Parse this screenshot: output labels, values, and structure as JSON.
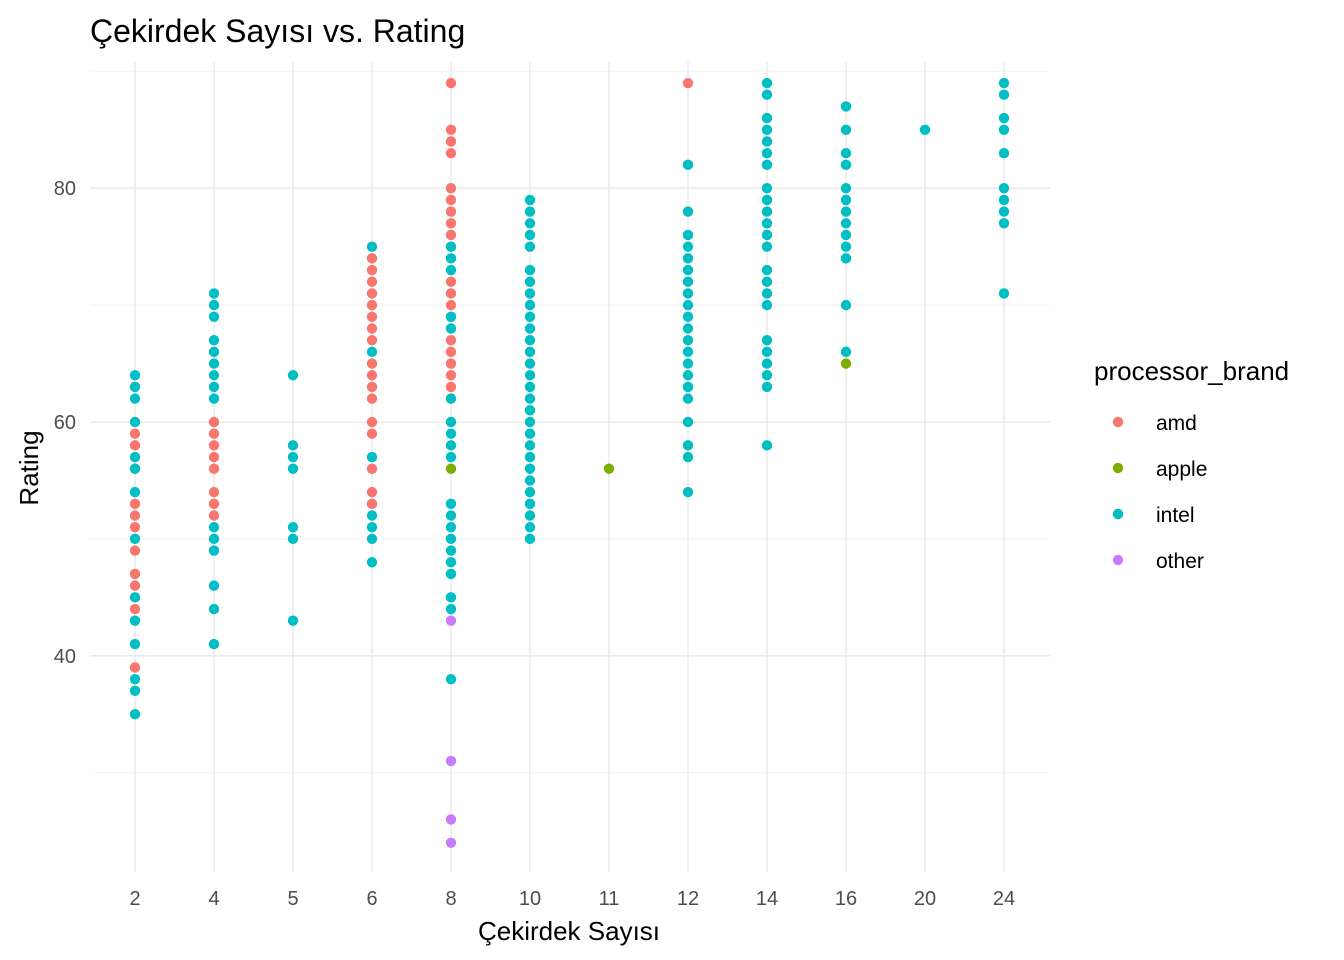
{
  "chart_data": {
    "type": "scatter",
    "title": "Çekirdek Sayısı vs. Rating",
    "xlabel": "Çekirdek Sayısı",
    "ylabel": "Rating",
    "x_axis": "categorical",
    "categories": [
      "2",
      "4",
      "5",
      "6",
      "8",
      "10",
      "11",
      "12",
      "14",
      "16",
      "20",
      "24"
    ],
    "ylim": [
      21.5,
      90.8
    ],
    "y_ticks": [
      40,
      60,
      80
    ],
    "y_minor_ticks": [
      30,
      50,
      70,
      90
    ],
    "grid": true,
    "legend": {
      "title": "processor_brand",
      "position": "right"
    },
    "series": [
      {
        "name": "amd",
        "color": "#F8766D",
        "points": [
          [
            "2",
            59
          ],
          [
            "2",
            58
          ],
          [
            "2",
            56
          ],
          [
            "2",
            53
          ],
          [
            "2",
            52
          ],
          [
            "2",
            51
          ],
          [
            "2",
            49
          ],
          [
            "2",
            47
          ],
          [
            "2",
            46
          ],
          [
            "2",
            44
          ],
          [
            "2",
            39
          ],
          [
            "4",
            60
          ],
          [
            "4",
            59
          ],
          [
            "4",
            58
          ],
          [
            "4",
            57
          ],
          [
            "4",
            56
          ],
          [
            "4",
            54
          ],
          [
            "4",
            53
          ],
          [
            "4",
            52
          ],
          [
            "6",
            74
          ],
          [
            "6",
            73
          ],
          [
            "6",
            72
          ],
          [
            "6",
            71
          ],
          [
            "6",
            70
          ],
          [
            "6",
            69
          ],
          [
            "6",
            68
          ],
          [
            "6",
            67
          ],
          [
            "6",
            65
          ],
          [
            "6",
            64
          ],
          [
            "6",
            63
          ],
          [
            "6",
            62
          ],
          [
            "6",
            60
          ],
          [
            "6",
            59
          ],
          [
            "6",
            56
          ],
          [
            "6",
            54
          ],
          [
            "6",
            53
          ],
          [
            "8",
            89
          ],
          [
            "8",
            85
          ],
          [
            "8",
            84
          ],
          [
            "8",
            83
          ],
          [
            "8",
            80
          ],
          [
            "8",
            79
          ],
          [
            "8",
            78
          ],
          [
            "8",
            77
          ],
          [
            "8",
            76
          ],
          [
            "8",
            75
          ],
          [
            "8",
            72
          ],
          [
            "8",
            71
          ],
          [
            "8",
            70
          ],
          [
            "8",
            69
          ],
          [
            "8",
            67
          ],
          [
            "8",
            66
          ],
          [
            "8",
            65
          ],
          [
            "8",
            64
          ],
          [
            "8",
            63
          ],
          [
            "8",
            62
          ],
          [
            "12",
            89
          ]
        ]
      },
      {
        "name": "apple",
        "color": "#7CAE00",
        "points": [
          [
            "8",
            56
          ],
          [
            "11",
            56
          ],
          [
            "16",
            65
          ]
        ]
      },
      {
        "name": "intel",
        "color": "#00BFC4",
        "points": [
          [
            "2",
            64
          ],
          [
            "2",
            63
          ],
          [
            "2",
            62
          ],
          [
            "2",
            60
          ],
          [
            "2",
            57
          ],
          [
            "2",
            56
          ],
          [
            "2",
            54
          ],
          [
            "2",
            50
          ],
          [
            "2",
            45
          ],
          [
            "2",
            43
          ],
          [
            "2",
            41
          ],
          [
            "2",
            38
          ],
          [
            "2",
            37
          ],
          [
            "2",
            35
          ],
          [
            "4",
            71
          ],
          [
            "4",
            70
          ],
          [
            "4",
            69
          ],
          [
            "4",
            67
          ],
          [
            "4",
            66
          ],
          [
            "4",
            65
          ],
          [
            "4",
            64
          ],
          [
            "4",
            63
          ],
          [
            "4",
            62
          ],
          [
            "4",
            51
          ],
          [
            "4",
            50
          ],
          [
            "4",
            49
          ],
          [
            "4",
            46
          ],
          [
            "4",
            44
          ],
          [
            "4",
            41
          ],
          [
            "5",
            64
          ],
          [
            "5",
            58
          ],
          [
            "5",
            57
          ],
          [
            "5",
            56
          ],
          [
            "5",
            51
          ],
          [
            "5",
            50
          ],
          [
            "5",
            43
          ],
          [
            "6",
            75
          ],
          [
            "6",
            66
          ],
          [
            "6",
            57
          ],
          [
            "6",
            52
          ],
          [
            "6",
            51
          ],
          [
            "6",
            50
          ],
          [
            "6",
            48
          ],
          [
            "8",
            75
          ],
          [
            "8",
            74
          ],
          [
            "8",
            73
          ],
          [
            "8",
            69
          ],
          [
            "8",
            68
          ],
          [
            "8",
            62
          ],
          [
            "8",
            60
          ],
          [
            "8",
            59
          ],
          [
            "8",
            58
          ],
          [
            "8",
            57
          ],
          [
            "8",
            53
          ],
          [
            "8",
            52
          ],
          [
            "8",
            51
          ],
          [
            "8",
            50
          ],
          [
            "8",
            49
          ],
          [
            "8",
            48
          ],
          [
            "8",
            47
          ],
          [
            "8",
            45
          ],
          [
            "8",
            44
          ],
          [
            "8",
            38
          ],
          [
            "10",
            79
          ],
          [
            "10",
            78
          ],
          [
            "10",
            77
          ],
          [
            "10",
            76
          ],
          [
            "10",
            75
          ],
          [
            "10",
            73
          ],
          [
            "10",
            72
          ],
          [
            "10",
            71
          ],
          [
            "10",
            70
          ],
          [
            "10",
            69
          ],
          [
            "10",
            68
          ],
          [
            "10",
            67
          ],
          [
            "10",
            66
          ],
          [
            "10",
            65
          ],
          [
            "10",
            64
          ],
          [
            "10",
            63
          ],
          [
            "10",
            62
          ],
          [
            "10",
            61
          ],
          [
            "10",
            60
          ],
          [
            "10",
            59
          ],
          [
            "10",
            58
          ],
          [
            "10",
            57
          ],
          [
            "10",
            56
          ],
          [
            "10",
            55
          ],
          [
            "10",
            54
          ],
          [
            "10",
            53
          ],
          [
            "10",
            52
          ],
          [
            "10",
            51
          ],
          [
            "10",
            50
          ],
          [
            "12",
            82
          ],
          [
            "12",
            78
          ],
          [
            "12",
            76
          ],
          [
            "12",
            75
          ],
          [
            "12",
            74
          ],
          [
            "12",
            73
          ],
          [
            "12",
            72
          ],
          [
            "12",
            71
          ],
          [
            "12",
            70
          ],
          [
            "12",
            69
          ],
          [
            "12",
            68
          ],
          [
            "12",
            67
          ],
          [
            "12",
            66
          ],
          [
            "12",
            65
          ],
          [
            "12",
            64
          ],
          [
            "12",
            63
          ],
          [
            "12",
            62
          ],
          [
            "12",
            60
          ],
          [
            "12",
            58
          ],
          [
            "12",
            57
          ],
          [
            "12",
            54
          ],
          [
            "14",
            89
          ],
          [
            "14",
            88
          ],
          [
            "14",
            86
          ],
          [
            "14",
            85
          ],
          [
            "14",
            84
          ],
          [
            "14",
            83
          ],
          [
            "14",
            82
          ],
          [
            "14",
            80
          ],
          [
            "14",
            79
          ],
          [
            "14",
            78
          ],
          [
            "14",
            77
          ],
          [
            "14",
            76
          ],
          [
            "14",
            75
          ],
          [
            "14",
            73
          ],
          [
            "14",
            72
          ],
          [
            "14",
            71
          ],
          [
            "14",
            70
          ],
          [
            "14",
            67
          ],
          [
            "14",
            66
          ],
          [
            "14",
            65
          ],
          [
            "14",
            64
          ],
          [
            "14",
            63
          ],
          [
            "14",
            58
          ],
          [
            "16",
            87
          ],
          [
            "16",
            85
          ],
          [
            "16",
            83
          ],
          [
            "16",
            82
          ],
          [
            "16",
            80
          ],
          [
            "16",
            79
          ],
          [
            "16",
            78
          ],
          [
            "16",
            77
          ],
          [
            "16",
            76
          ],
          [
            "16",
            75
          ],
          [
            "16",
            74
          ],
          [
            "16",
            70
          ],
          [
            "16",
            66
          ],
          [
            "20",
            85
          ],
          [
            "24",
            89
          ],
          [
            "24",
            88
          ],
          [
            "24",
            86
          ],
          [
            "24",
            85
          ],
          [
            "24",
            83
          ],
          [
            "24",
            80
          ],
          [
            "24",
            79
          ],
          [
            "24",
            78
          ],
          [
            "24",
            77
          ],
          [
            "24",
            71
          ]
        ]
      },
      {
        "name": "other",
        "color": "#C77CFF",
        "points": [
          [
            "8",
            43
          ],
          [
            "8",
            31
          ],
          [
            "8",
            26
          ],
          [
            "8",
            24
          ]
        ]
      }
    ]
  }
}
